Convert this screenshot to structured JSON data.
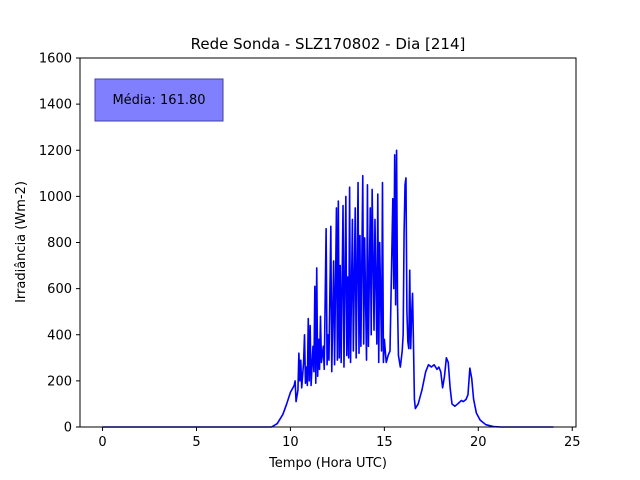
{
  "chart_data": {
    "type": "line",
    "title": "Rede Sonda - SLZ170802 - Dia [214]",
    "xlabel": "Tempo (Hora UTC)",
    "ylabel": "Irradiância (Wm-2)",
    "xlim": [
      -1.2,
      25.2
    ],
    "ylim": [
      0,
      1600
    ],
    "xticks": [
      0,
      5,
      10,
      15,
      20,
      25
    ],
    "yticks": [
      0,
      200,
      400,
      600,
      800,
      1000,
      1200,
      1400,
      1600
    ],
    "grid": false,
    "annotation": {
      "text": "Média: 161.80",
      "position": "top-left",
      "box_color": "#8080ff"
    },
    "series": [
      {
        "color": "#0000ff",
        "points": [
          [
            0.0,
            0
          ],
          [
            9.0,
            0
          ],
          [
            9.3,
            15
          ],
          [
            9.6,
            55
          ],
          [
            9.8,
            100
          ],
          [
            10.0,
            150
          ],
          [
            10.2,
            180
          ],
          [
            10.25,
            200
          ],
          [
            10.3,
            110
          ],
          [
            10.4,
            160
          ],
          [
            10.45,
            320
          ],
          [
            10.5,
            200
          ],
          [
            10.55,
            290
          ],
          [
            10.6,
            170
          ],
          [
            10.7,
            280
          ],
          [
            10.75,
            400
          ],
          [
            10.8,
            190
          ],
          [
            10.85,
            260
          ],
          [
            10.9,
            180
          ],
          [
            10.95,
            470
          ],
          [
            11.0,
            200
          ],
          [
            11.05,
            440
          ],
          [
            11.1,
            180
          ],
          [
            11.2,
            350
          ],
          [
            11.25,
            240
          ],
          [
            11.3,
            610
          ],
          [
            11.35,
            190
          ],
          [
            11.4,
            690
          ],
          [
            11.45,
            220
          ],
          [
            11.5,
            380
          ],
          [
            11.55,
            250
          ],
          [
            11.6,
            480
          ],
          [
            11.65,
            280
          ],
          [
            11.75,
            350
          ],
          [
            11.8,
            250
          ],
          [
            11.9,
            860
          ],
          [
            11.95,
            270
          ],
          [
            12.0,
            400
          ],
          [
            12.05,
            290
          ],
          [
            12.15,
            870
          ],
          [
            12.2,
            240
          ],
          [
            12.3,
            720
          ],
          [
            12.35,
            270
          ],
          [
            12.45,
            950
          ],
          [
            12.5,
            290
          ],
          [
            12.55,
            980
          ],
          [
            12.6,
            300
          ],
          [
            12.65,
            700
          ],
          [
            12.7,
            280
          ],
          [
            12.8,
            960
          ],
          [
            12.85,
            260
          ],
          [
            12.95,
            1000
          ],
          [
            13.0,
            310
          ],
          [
            13.05,
            650
          ],
          [
            13.1,
            300
          ],
          [
            13.15,
            1040
          ],
          [
            13.2,
            280
          ],
          [
            13.3,
            900
          ],
          [
            13.35,
            330
          ],
          [
            13.45,
            950
          ],
          [
            13.5,
            300
          ],
          [
            13.6,
            1060
          ],
          [
            13.65,
            320
          ],
          [
            13.7,
            830
          ],
          [
            13.75,
            350
          ],
          [
            13.85,
            1090
          ],
          [
            13.9,
            360
          ],
          [
            13.95,
            820
          ],
          [
            14.05,
            290
          ],
          [
            14.1,
            1050
          ],
          [
            14.15,
            350
          ],
          [
            14.25,
            950
          ],
          [
            14.3,
            400
          ],
          [
            14.35,
            1030
          ],
          [
            14.45,
            420
          ],
          [
            14.5,
            900
          ],
          [
            14.6,
            360
          ],
          [
            14.65,
            1010
          ],
          [
            14.7,
            280
          ],
          [
            14.75,
            800
          ],
          [
            14.85,
            330
          ],
          [
            14.9,
            1060
          ],
          [
            14.95,
            280
          ],
          [
            15.0,
            380
          ],
          [
            15.1,
            280
          ],
          [
            15.2,
            310
          ],
          [
            15.3,
            330
          ],
          [
            15.45,
            990
          ],
          [
            15.5,
            600
          ],
          [
            15.55,
            1180
          ],
          [
            15.6,
            530
          ],
          [
            15.65,
            1200
          ],
          [
            15.7,
            540
          ],
          [
            15.75,
            310
          ],
          [
            15.85,
            260
          ],
          [
            15.95,
            330
          ],
          [
            16.0,
            400
          ],
          [
            16.05,
            840
          ],
          [
            16.1,
            1050
          ],
          [
            16.15,
            1080
          ],
          [
            16.2,
            500
          ],
          [
            16.25,
            370
          ],
          [
            16.3,
            340
          ],
          [
            16.35,
            680
          ],
          [
            16.4,
            340
          ],
          [
            16.45,
            480
          ],
          [
            16.5,
            580
          ],
          [
            16.55,
            360
          ],
          [
            16.6,
            120
          ],
          [
            16.65,
            80
          ],
          [
            16.8,
            100
          ],
          [
            17.0,
            160
          ],
          [
            17.2,
            240
          ],
          [
            17.35,
            270
          ],
          [
            17.5,
            260
          ],
          [
            17.65,
            270
          ],
          [
            17.8,
            250
          ],
          [
            17.9,
            260
          ],
          [
            18.0,
            240
          ],
          [
            18.1,
            170
          ],
          [
            18.2,
            220
          ],
          [
            18.3,
            300
          ],
          [
            18.4,
            280
          ],
          [
            18.5,
            170
          ],
          [
            18.6,
            100
          ],
          [
            18.75,
            90
          ],
          [
            18.9,
            100
          ],
          [
            19.1,
            115
          ],
          [
            19.2,
            110
          ],
          [
            19.35,
            120
          ],
          [
            19.45,
            140
          ],
          [
            19.55,
            255
          ],
          [
            19.65,
            210
          ],
          [
            19.75,
            120
          ],
          [
            19.9,
            60
          ],
          [
            20.1,
            30
          ],
          [
            20.4,
            10
          ],
          [
            20.8,
            2
          ],
          [
            21.2,
            0
          ],
          [
            24.0,
            0
          ]
        ]
      }
    ]
  }
}
